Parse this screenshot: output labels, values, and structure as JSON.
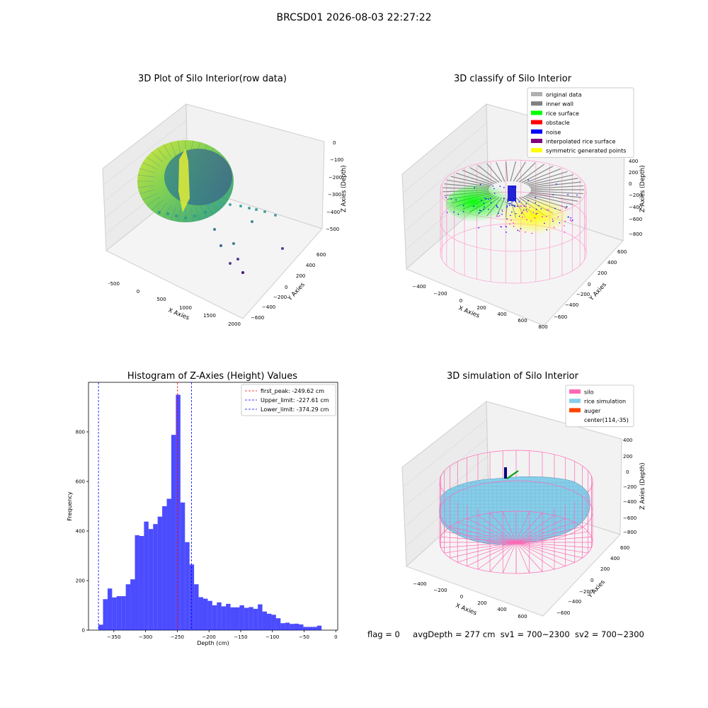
{
  "suptitle": "BRCSD01 2026-08-03 22:27:22",
  "footer": {
    "flag": "flag = 0",
    "avg_depth": "avgDepth = 277 cm",
    "sv1": "sv1 = 700~2300",
    "sv2": "sv2 = 700~2300"
  },
  "panels": {
    "raw": {
      "title": "3D Plot of Silo Interior(row data)",
      "x_label": "X Axies",
      "y_label": "Y Axies",
      "z_label": "Z Axies (Depth)",
      "x_ticks": [
        "-500",
        "0",
        "500",
        "1000",
        "1500",
        "2000"
      ],
      "y_ticks": [
        "600",
        "400",
        "200",
        "0",
        "−200",
        "−400",
        "−600"
      ],
      "z_ticks": [
        "0",
        "−100",
        "−200",
        "−300",
        "−400",
        "−500"
      ]
    },
    "classify": {
      "title": "3D classify of Silo Interior",
      "x_label": "X Axies",
      "y_label": "Y Axies",
      "z_label": "Z Axies (Depth)",
      "x_ticks": [
        "−400",
        "−200",
        "0",
        "200",
        "400",
        "600",
        "800"
      ],
      "y_ticks": [
        "600",
        "400",
        "200",
        "0",
        "−200",
        "−400",
        "−600"
      ],
      "z_ticks": [
        "400",
        "200",
        "0",
        "−200",
        "−400",
        "−600",
        "−800"
      ],
      "legend": [
        {
          "label": "original data",
          "color": "#b0b0b0"
        },
        {
          "label": "inner wall",
          "color": "#808080"
        },
        {
          "label": "rice surface",
          "color": "#00ff00"
        },
        {
          "label": "obstacle",
          "color": "#ff0000"
        },
        {
          "label": "noise",
          "color": "#0000ff"
        },
        {
          "label": "interpolated rice surface",
          "color": "#800080"
        },
        {
          "label": "symmetric generated points",
          "color": "#ffff00"
        }
      ]
    },
    "simulation": {
      "title": "3D simulation of Silo Interior",
      "x_label": "X Axies",
      "y_label": "Y Axies",
      "z_label": "Z Axies (Depth)",
      "x_ticks": [
        "−400",
        "−200",
        "0",
        "200",
        "400",
        "600"
      ],
      "y_ticks": [
        "600",
        "400",
        "200",
        "0",
        "−200",
        "−400",
        "−600"
      ],
      "z_ticks": [
        "400",
        "200",
        "0",
        "−200",
        "−400",
        "−600",
        "−800"
      ],
      "legend": [
        {
          "label": "silo",
          "color": "#ff69b4"
        },
        {
          "label": "rice simulation",
          "color": "#87ceeb"
        },
        {
          "label": "auger",
          "color": "#ff4500"
        },
        {
          "label": "center(114,-35)",
          "color": ""
        }
      ]
    }
  },
  "chart_data": {
    "type": "bar",
    "title": "Histogram of Z-Axies (Height) Values",
    "xlabel": "Depth (cm)",
    "ylabel": "Frequency",
    "xlim": [
      -390,
      3
    ],
    "ylim": [
      0,
      1000
    ],
    "x_ticks": [
      -350,
      -300,
      -250,
      -200,
      -150,
      -100,
      -50,
      0
    ],
    "x_tick_labels": [
      "−350",
      "−300",
      "−250",
      "−200",
      "−150",
      "−100",
      "−50",
      "0"
    ],
    "y_ticks": [
      0,
      200,
      400,
      600,
      800
    ],
    "bin_start": -374.29,
    "bin_width": 7.18,
    "counts": [
      22,
      125,
      168,
      132,
      137,
      137,
      185,
      205,
      383,
      380,
      438,
      408,
      428,
      458,
      500,
      530,
      788,
      950,
      515,
      355,
      265,
      185,
      133,
      127,
      118,
      100,
      112,
      96,
      106,
      92,
      92,
      100,
      90,
      93,
      86,
      104,
      75,
      66,
      62,
      48,
      28,
      30,
      25,
      26,
      23,
      13,
      13,
      13,
      18
    ],
    "bar_color": "#0000ff",
    "bar_opacity": 0.7,
    "vlines": [
      {
        "name": "first_peak",
        "label": "first_peak: -249.62 cm",
        "x": -249.62,
        "color": "#ff0000"
      },
      {
        "name": "upper_limit",
        "label": "Upper_limit: -227.61 cm",
        "x": -227.61,
        "color": "#0000ff"
      },
      {
        "name": "lower_limit",
        "label": "Lower_limit: -374.29 cm",
        "x": -374.29,
        "color": "#0000ff"
      }
    ],
    "legend_position": "top-right"
  }
}
